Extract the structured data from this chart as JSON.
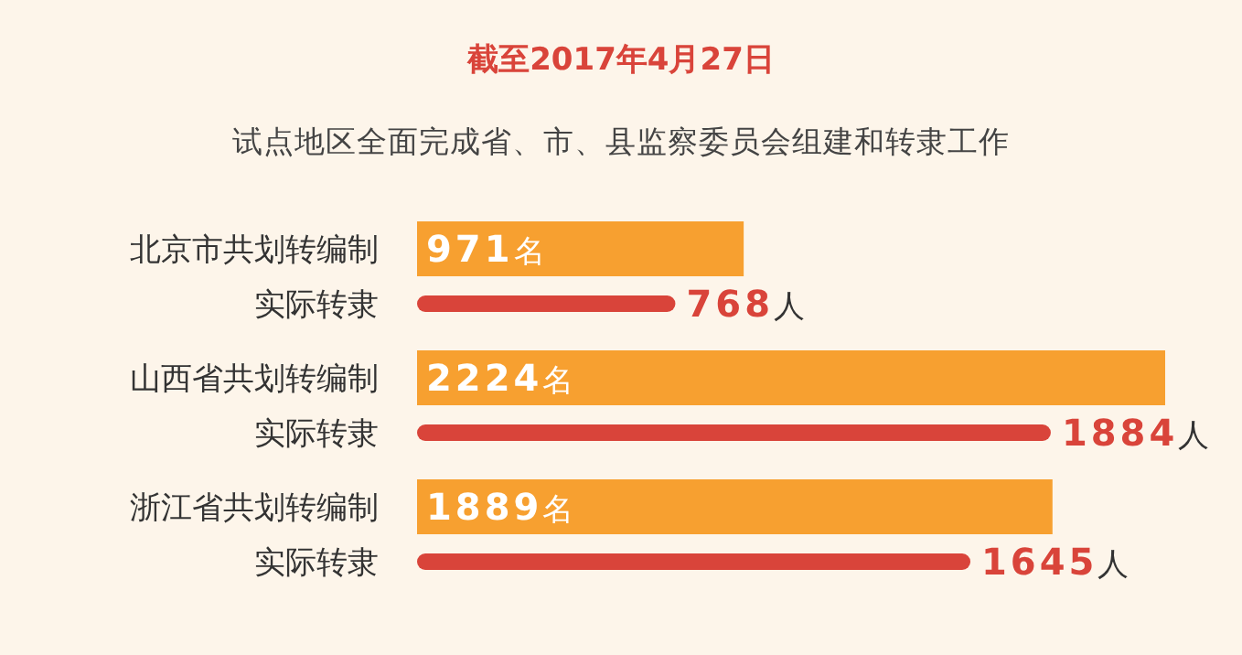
{
  "chart_data": {
    "type": "bar",
    "orientation": "horizontal",
    "title": "截至2017年4月27日",
    "subtitle": "试点地区全面完成省、市、县监察委员会组建和转隶工作",
    "categories": [
      "北京市共划转编制",
      "实际转隶",
      "山西省共划转编制",
      "实际转隶",
      "浙江省共划转编制",
      "实际转隶"
    ],
    "values": [
      971,
      768,
      2224,
      1884,
      1889,
      1645
    ],
    "colors": [
      "#f7a030",
      "#d9443a",
      "#f7a030",
      "#d9443a",
      "#f7a030",
      "#d9443a"
    ],
    "value_labels": [
      "971名",
      "768人",
      "2224名",
      "1884人",
      "1889名",
      "1645人"
    ]
  }
}
